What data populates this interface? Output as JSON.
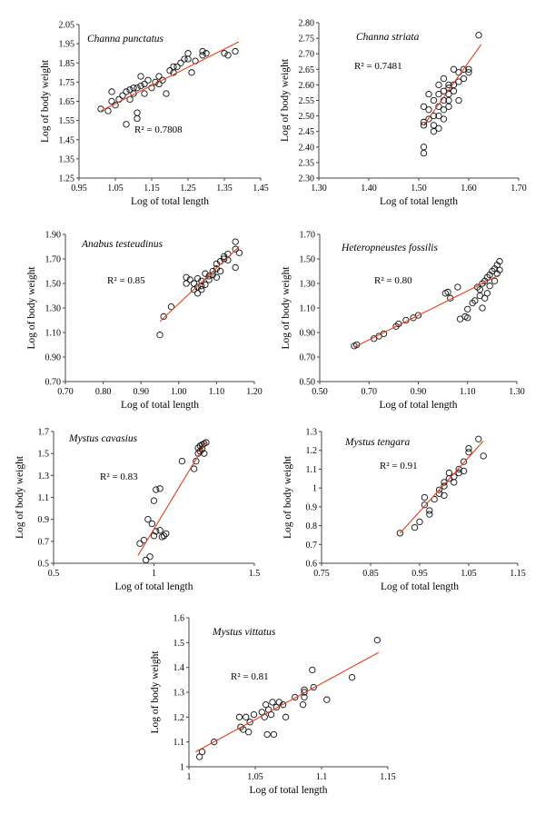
{
  "colors": {
    "points": "#111111",
    "fit": "#e0411c",
    "axis": "#444444"
  },
  "chart_data": [
    {
      "type": "scatter",
      "title": "Channa punctatus",
      "r2": "R² = 0.7808",
      "xlabel": "Log of total length",
      "ylabel": "Log of body weight",
      "xlim": [
        0.95,
        1.45
      ],
      "ylim": [
        1.25,
        2.05
      ],
      "xticks": [
        0.95,
        1.05,
        1.15,
        1.25,
        1.35,
        1.45
      ],
      "yticks": [
        1.25,
        1.35,
        1.45,
        1.55,
        1.65,
        1.75,
        1.85,
        1.95,
        2.05
      ],
      "xtick_labels": [
        "0.95",
        "1.05",
        "1.15",
        "1.25",
        "1.35",
        "1.45"
      ],
      "ytick_labels": [
        "1.25",
        "1.35",
        "1.45",
        "1.55",
        "1.65",
        "1.75",
        "1.85",
        "1.95",
        "2.05"
      ],
      "fit": [
        [
          1.01,
          1.6
        ],
        [
          1.39,
          1.96
        ]
      ],
      "points": [
        [
          1.01,
          1.61
        ],
        [
          1.03,
          1.6
        ],
        [
          1.04,
          1.65
        ],
        [
          1.04,
          1.7
        ],
        [
          1.05,
          1.63
        ],
        [
          1.06,
          1.66
        ],
        [
          1.07,
          1.68
        ],
        [
          1.08,
          1.7
        ],
        [
          1.08,
          1.53
        ],
        [
          1.09,
          1.66
        ],
        [
          1.09,
          1.71
        ],
        [
          1.1,
          1.69
        ],
        [
          1.1,
          1.72
        ],
        [
          1.11,
          1.56
        ],
        [
          1.11,
          1.59
        ],
        [
          1.11,
          1.72
        ],
        [
          1.12,
          1.73
        ],
        [
          1.12,
          1.78
        ],
        [
          1.13,
          1.74
        ],
        [
          1.13,
          1.69
        ],
        [
          1.14,
          1.76
        ],
        [
          1.15,
          1.72
        ],
        [
          1.16,
          1.75
        ],
        [
          1.17,
          1.78
        ],
        [
          1.17,
          1.74
        ],
        [
          1.18,
          1.76
        ],
        [
          1.19,
          1.69
        ],
        [
          1.2,
          1.81
        ],
        [
          1.21,
          1.83
        ],
        [
          1.21,
          1.8
        ],
        [
          1.22,
          1.83
        ],
        [
          1.23,
          1.85
        ],
        [
          1.24,
          1.87
        ],
        [
          1.25,
          1.87
        ],
        [
          1.25,
          1.9
        ],
        [
          1.27,
          1.86
        ],
        [
          1.26,
          1.8
        ],
        [
          1.29,
          1.89
        ],
        [
          1.29,
          1.91
        ],
        [
          1.3,
          1.9
        ],
        [
          1.35,
          1.9
        ],
        [
          1.36,
          1.89
        ],
        [
          1.38,
          1.91
        ]
      ]
    },
    {
      "type": "scatter",
      "title": "Channa striata",
      "r2": "R² = 0.7481",
      "xlabel": "Log of total length",
      "ylabel": "Log of body weight",
      "xlim": [
        1.3,
        1.7
      ],
      "ylim": [
        2.3,
        2.8
      ],
      "xticks": [
        1.3,
        1.4,
        1.5,
        1.6,
        1.7
      ],
      "yticks": [
        2.3,
        2.35,
        2.4,
        2.45,
        2.5,
        2.55,
        2.6,
        2.65,
        2.7,
        2.75,
        2.8
      ],
      "xtick_labels": [
        "1.30",
        "1.40",
        "1.50",
        "1.60",
        "1.70"
      ],
      "ytick_labels": [
        "2.30",
        "2.35",
        "2.40",
        "2.45",
        "2.50",
        "2.55",
        "2.60",
        "2.65",
        "2.70",
        "2.75",
        "2.80"
      ],
      "fit": [
        [
          1.51,
          2.47
        ],
        [
          1.625,
          2.73
        ]
      ],
      "points": [
        [
          1.51,
          2.38
        ],
        [
          1.51,
          2.4
        ],
        [
          1.51,
          2.47
        ],
        [
          1.51,
          2.48
        ],
        [
          1.51,
          2.53
        ],
        [
          1.52,
          2.49
        ],
        [
          1.52,
          2.52
        ],
        [
          1.52,
          2.57
        ],
        [
          1.53,
          2.45
        ],
        [
          1.53,
          2.47
        ],
        [
          1.53,
          2.5
        ],
        [
          1.53,
          2.55
        ],
        [
          1.54,
          2.46
        ],
        [
          1.54,
          2.5
        ],
        [
          1.54,
          2.53
        ],
        [
          1.54,
          2.57
        ],
        [
          1.54,
          2.6
        ],
        [
          1.55,
          2.49
        ],
        [
          1.55,
          2.52
        ],
        [
          1.55,
          2.55
        ],
        [
          1.55,
          2.58
        ],
        [
          1.55,
          2.62
        ],
        [
          1.56,
          2.53
        ],
        [
          1.56,
          2.55
        ],
        [
          1.56,
          2.57
        ],
        [
          1.56,
          2.59
        ],
        [
          1.56,
          2.6
        ],
        [
          1.57,
          2.58
        ],
        [
          1.57,
          2.6
        ],
        [
          1.57,
          2.65
        ],
        [
          1.58,
          2.55
        ],
        [
          1.58,
          2.61
        ],
        [
          1.58,
          2.64
        ],
        [
          1.59,
          2.62
        ],
        [
          1.59,
          2.65
        ],
        [
          1.6,
          2.64
        ],
        [
          1.6,
          2.65
        ],
        [
          1.62,
          2.76
        ]
      ]
    },
    {
      "type": "scatter",
      "title": "Anabus testeudinus",
      "r2": "R² = 0.85",
      "xlabel": "Log of total length",
      "ylabel": "Log of body weight",
      "xlim": [
        0.7,
        1.2
      ],
      "ylim": [
        0.7,
        1.9
      ],
      "xticks": [
        0.7,
        0.8,
        0.9,
        1.0,
        1.1,
        1.2
      ],
      "yticks": [
        0.7,
        0.9,
        1.1,
        1.3,
        1.5,
        1.7,
        1.9
      ],
      "xtick_labels": [
        "0.70",
        "0.80",
        "0.90",
        "1.00",
        "1.10",
        "1.20"
      ],
      "ytick_labels": [
        "0.70",
        "0.90",
        "1.10",
        "1.30",
        "1.50",
        "1.70",
        "1.90"
      ],
      "fit": [
        [
          0.95,
          1.19
        ],
        [
          1.16,
          1.8
        ]
      ],
      "points": [
        [
          0.95,
          1.08
        ],
        [
          0.96,
          1.23
        ],
        [
          0.98,
          1.31
        ],
        [
          1.02,
          1.5
        ],
        [
          1.02,
          1.55
        ],
        [
          1.03,
          1.53
        ],
        [
          1.04,
          1.45
        ],
        [
          1.04,
          1.5
        ],
        [
          1.05,
          1.42
        ],
        [
          1.05,
          1.47
        ],
        [
          1.05,
          1.54
        ],
        [
          1.06,
          1.45
        ],
        [
          1.06,
          1.48
        ],
        [
          1.06,
          1.52
        ],
        [
          1.07,
          1.49
        ],
        [
          1.07,
          1.58
        ],
        [
          1.08,
          1.53
        ],
        [
          1.08,
          1.56
        ],
        [
          1.09,
          1.57
        ],
        [
          1.09,
          1.6
        ],
        [
          1.1,
          1.55
        ],
        [
          1.1,
          1.62
        ],
        [
          1.1,
          1.66
        ],
        [
          1.11,
          1.6
        ],
        [
          1.11,
          1.68
        ],
        [
          1.12,
          1.7
        ],
        [
          1.12,
          1.72
        ],
        [
          1.13,
          1.69
        ],
        [
          1.13,
          1.74
        ],
        [
          1.15,
          1.63
        ],
        [
          1.15,
          1.78
        ],
        [
          1.15,
          1.84
        ],
        [
          1.16,
          1.75
        ]
      ]
    },
    {
      "type": "scatter",
      "title": "Heteropneustes fossilis",
      "r2": "R² = 0.80",
      "xlabel": "Log of total length",
      "ylabel": "Log of body weight",
      "xlim": [
        0.5,
        1.3
      ],
      "ylim": [
        0.5,
        1.7
      ],
      "xticks": [
        0.5,
        0.7,
        0.9,
        1.1,
        1.3
      ],
      "yticks": [
        0.5,
        0.7,
        0.9,
        1.1,
        1.3,
        1.5,
        1.7
      ],
      "xtick_labels": [
        "0.50",
        "0.70",
        "0.90",
        "1.10",
        "1.30"
      ],
      "ytick_labels": [
        "0.50",
        "0.70",
        "0.90",
        "1.10",
        "1.30",
        "1.50",
        "1.70"
      ],
      "fit": [
        [
          0.64,
          0.78
        ],
        [
          1.23,
          1.37
        ]
      ],
      "points": [
        [
          0.64,
          0.79
        ],
        [
          0.65,
          0.8
        ],
        [
          0.72,
          0.85
        ],
        [
          0.74,
          0.87
        ],
        [
          0.76,
          0.89
        ],
        [
          0.81,
          0.95
        ],
        [
          0.82,
          0.97
        ],
        [
          0.85,
          1.0
        ],
        [
          0.88,
          1.02
        ],
        [
          0.9,
          1.04
        ],
        [
          1.01,
          1.22
        ],
        [
          1.02,
          1.23
        ],
        [
          1.03,
          1.18
        ],
        [
          1.06,
          1.27
        ],
        [
          1.07,
          1.01
        ],
        [
          1.09,
          1.03
        ],
        [
          1.1,
          1.02
        ],
        [
          1.1,
          1.09
        ],
        [
          1.12,
          1.14
        ],
        [
          1.13,
          1.16
        ],
        [
          1.14,
          1.27
        ],
        [
          1.15,
          1.2
        ],
        [
          1.15,
          1.25
        ],
        [
          1.16,
          1.1
        ],
        [
          1.16,
          1.3
        ],
        [
          1.17,
          1.18
        ],
        [
          1.17,
          1.32
        ],
        [
          1.18,
          1.22
        ],
        [
          1.18,
          1.35
        ],
        [
          1.19,
          1.28
        ],
        [
          1.19,
          1.37
        ],
        [
          1.2,
          1.4
        ],
        [
          1.21,
          1.32
        ],
        [
          1.21,
          1.42
        ],
        [
          1.22,
          1.38
        ],
        [
          1.22,
          1.45
        ],
        [
          1.23,
          1.48
        ],
        [
          1.23,
          1.41
        ]
      ]
    },
    {
      "type": "scatter",
      "title": "Mystus cavasius",
      "r2": "R² = 0.83",
      "xlabel": "Log of total length",
      "ylabel": "Log of body weight",
      "xlim": [
        0.5,
        1.5
      ],
      "ylim": [
        0.5,
        1.7
      ],
      "xticks": [
        0.5,
        1.0,
        1.5
      ],
      "yticks": [
        0.5,
        0.7,
        0.9,
        1.1,
        1.3,
        1.5,
        1.7
      ],
      "xtick_labels": [
        "0.5",
        "1",
        "1.5"
      ],
      "ytick_labels": [
        "0.5",
        "0.7",
        "0.9",
        "1.1",
        "1.3",
        "1.5",
        "1.7"
      ],
      "fit": [
        [
          0.92,
          0.57
        ],
        [
          1.26,
          1.6
        ]
      ],
      "points": [
        [
          0.93,
          0.68
        ],
        [
          0.95,
          0.71
        ],
        [
          0.96,
          0.53
        ],
        [
          0.97,
          0.9
        ],
        [
          0.98,
          0.56
        ],
        [
          0.99,
          0.86
        ],
        [
          1.0,
          0.75
        ],
        [
          1.0,
          1.07
        ],
        [
          1.01,
          0.79
        ],
        [
          1.01,
          1.17
        ],
        [
          1.03,
          0.8
        ],
        [
          1.03,
          1.18
        ],
        [
          1.04,
          0.74
        ],
        [
          1.05,
          0.75
        ],
        [
          1.06,
          0.77
        ],
        [
          1.14,
          1.43
        ],
        [
          1.2,
          1.36
        ],
        [
          1.21,
          1.43
        ],
        [
          1.22,
          1.5
        ],
        [
          1.22,
          1.55
        ],
        [
          1.23,
          1.57
        ],
        [
          1.23,
          1.52
        ],
        [
          1.24,
          1.54
        ],
        [
          1.24,
          1.58
        ],
        [
          1.25,
          1.5
        ],
        [
          1.25,
          1.59
        ],
        [
          1.26,
          1.6
        ]
      ]
    },
    {
      "type": "scatter",
      "title": "Mystus tengara",
      "r2": "R² = 0.91",
      "xlabel": "Log of total length",
      "ylabel": "Log of body weight",
      "xlim": [
        0.75,
        1.15
      ],
      "ylim": [
        0.6,
        1.3
      ],
      "xticks": [
        0.75,
        0.85,
        0.95,
        1.05,
        1.15
      ],
      "yticks": [
        0.6,
        0.7,
        0.8,
        0.9,
        1.0,
        1.1,
        1.2,
        1.3
      ],
      "xtick_labels": [
        "0.75",
        "0.85",
        "0.95",
        "1.05",
        "1.15"
      ],
      "ytick_labels": [
        "0.6",
        "0.7",
        "0.8",
        "0.9",
        "1",
        "1.1",
        "1.2",
        "1.3"
      ],
      "fit": [
        [
          0.91,
          0.76
        ],
        [
          1.08,
          1.25
        ]
      ],
      "points": [
        [
          0.91,
          0.76
        ],
        [
          0.94,
          0.79
        ],
        [
          0.95,
          0.82
        ],
        [
          0.96,
          0.95
        ],
        [
          0.96,
          0.91
        ],
        [
          0.97,
          0.86
        ],
        [
          0.97,
          0.88
        ],
        [
          0.98,
          0.94
        ],
        [
          0.99,
          0.97
        ],
        [
          0.99,
          0.99
        ],
        [
          1.0,
          1.03
        ],
        [
          1.0,
          0.96
        ],
        [
          1.0,
          1.01
        ],
        [
          1.01,
          1.05
        ],
        [
          1.01,
          1.08
        ],
        [
          1.02,
          1.06
        ],
        [
          1.02,
          1.03
        ],
        [
          1.03,
          1.08
        ],
        [
          1.03,
          1.1
        ],
        [
          1.04,
          1.14
        ],
        [
          1.04,
          1.09
        ],
        [
          1.05,
          1.19
        ],
        [
          1.05,
          1.21
        ],
        [
          1.07,
          1.26
        ],
        [
          1.08,
          1.17
        ]
      ]
    },
    {
      "type": "scatter",
      "title": "Mystus vittatus",
      "r2": "R² = 0.81",
      "xlabel": "Log of total length",
      "ylabel": "Log of body weight",
      "xlim": [
        1.0,
        1.15
      ],
      "ylim": [
        1.0,
        1.6
      ],
      "xticks": [
        1.0,
        1.05,
        1.1,
        1.15
      ],
      "yticks": [
        1.0,
        1.1,
        1.2,
        1.3,
        1.4,
        1.5,
        1.6
      ],
      "xtick_labels": [
        "1",
        "1.05",
        "1.1",
        "1.15"
      ],
      "ytick_labels": [
        "1",
        "1.1",
        "1.2",
        "1.3",
        "1.4",
        "1.5",
        "1.6"
      ],
      "fit": [
        [
          1.005,
          1.06
        ],
        [
          1.143,
          1.46
        ]
      ],
      "points": [
        [
          1.008,
          1.04
        ],
        [
          1.01,
          1.06
        ],
        [
          1.019,
          1.1
        ],
        [
          1.038,
          1.2
        ],
        [
          1.039,
          1.16
        ],
        [
          1.041,
          1.15
        ],
        [
          1.043,
          1.2
        ],
        [
          1.045,
          1.14
        ],
        [
          1.046,
          1.18
        ],
        [
          1.049,
          1.21
        ],
        [
          1.055,
          1.22
        ],
        [
          1.057,
          1.2
        ],
        [
          1.058,
          1.25
        ],
        [
          1.059,
          1.13
        ],
        [
          1.06,
          1.23
        ],
        [
          1.062,
          1.21
        ],
        [
          1.063,
          1.26
        ],
        [
          1.064,
          1.13
        ],
        [
          1.066,
          1.24
        ],
        [
          1.068,
          1.26
        ],
        [
          1.071,
          1.25
        ],
        [
          1.073,
          1.2
        ],
        [
          1.08,
          1.28
        ],
        [
          1.086,
          1.25
        ],
        [
          1.087,
          1.31
        ],
        [
          1.087,
          1.28
        ],
        [
          1.087,
          1.3
        ],
        [
          1.093,
          1.39
        ],
        [
          1.094,
          1.32
        ],
        [
          1.104,
          1.27
        ],
        [
          1.123,
          1.36
        ],
        [
          1.142,
          1.51
        ]
      ]
    }
  ]
}
